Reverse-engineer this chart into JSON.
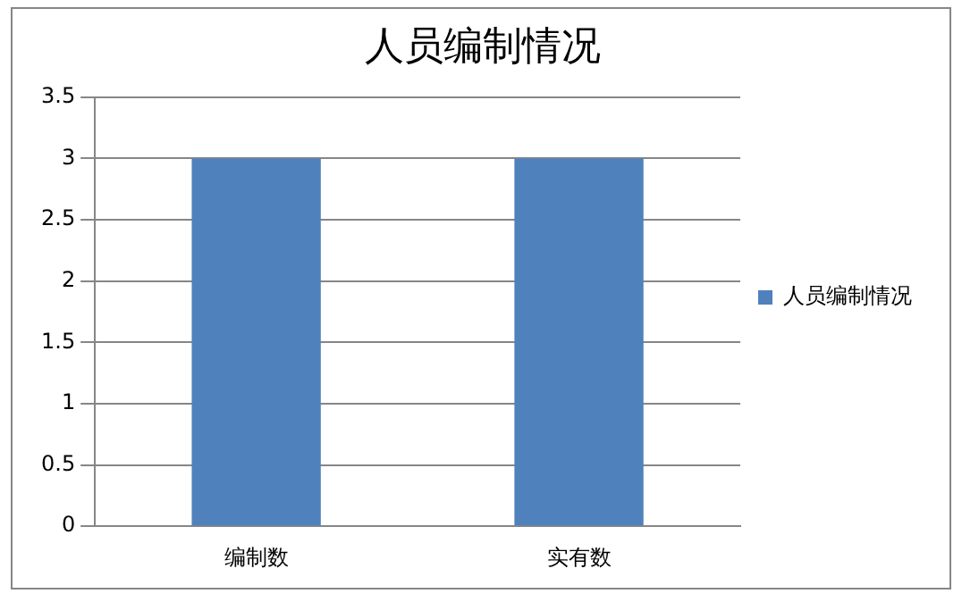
{
  "chart_data": {
    "type": "bar",
    "title": "人员编制情况",
    "categories": [
      "编制数",
      "实有数"
    ],
    "series": [
      {
        "name": "人员编制情况",
        "color": "#4f81bd",
        "values": [
          3,
          3
        ]
      }
    ],
    "ylim": [
      0,
      3.5
    ],
    "yticks": [
      0,
      0.5,
      1,
      1.5,
      2,
      2.5,
      3,
      3.5
    ],
    "grid": "y",
    "legend": "right"
  }
}
